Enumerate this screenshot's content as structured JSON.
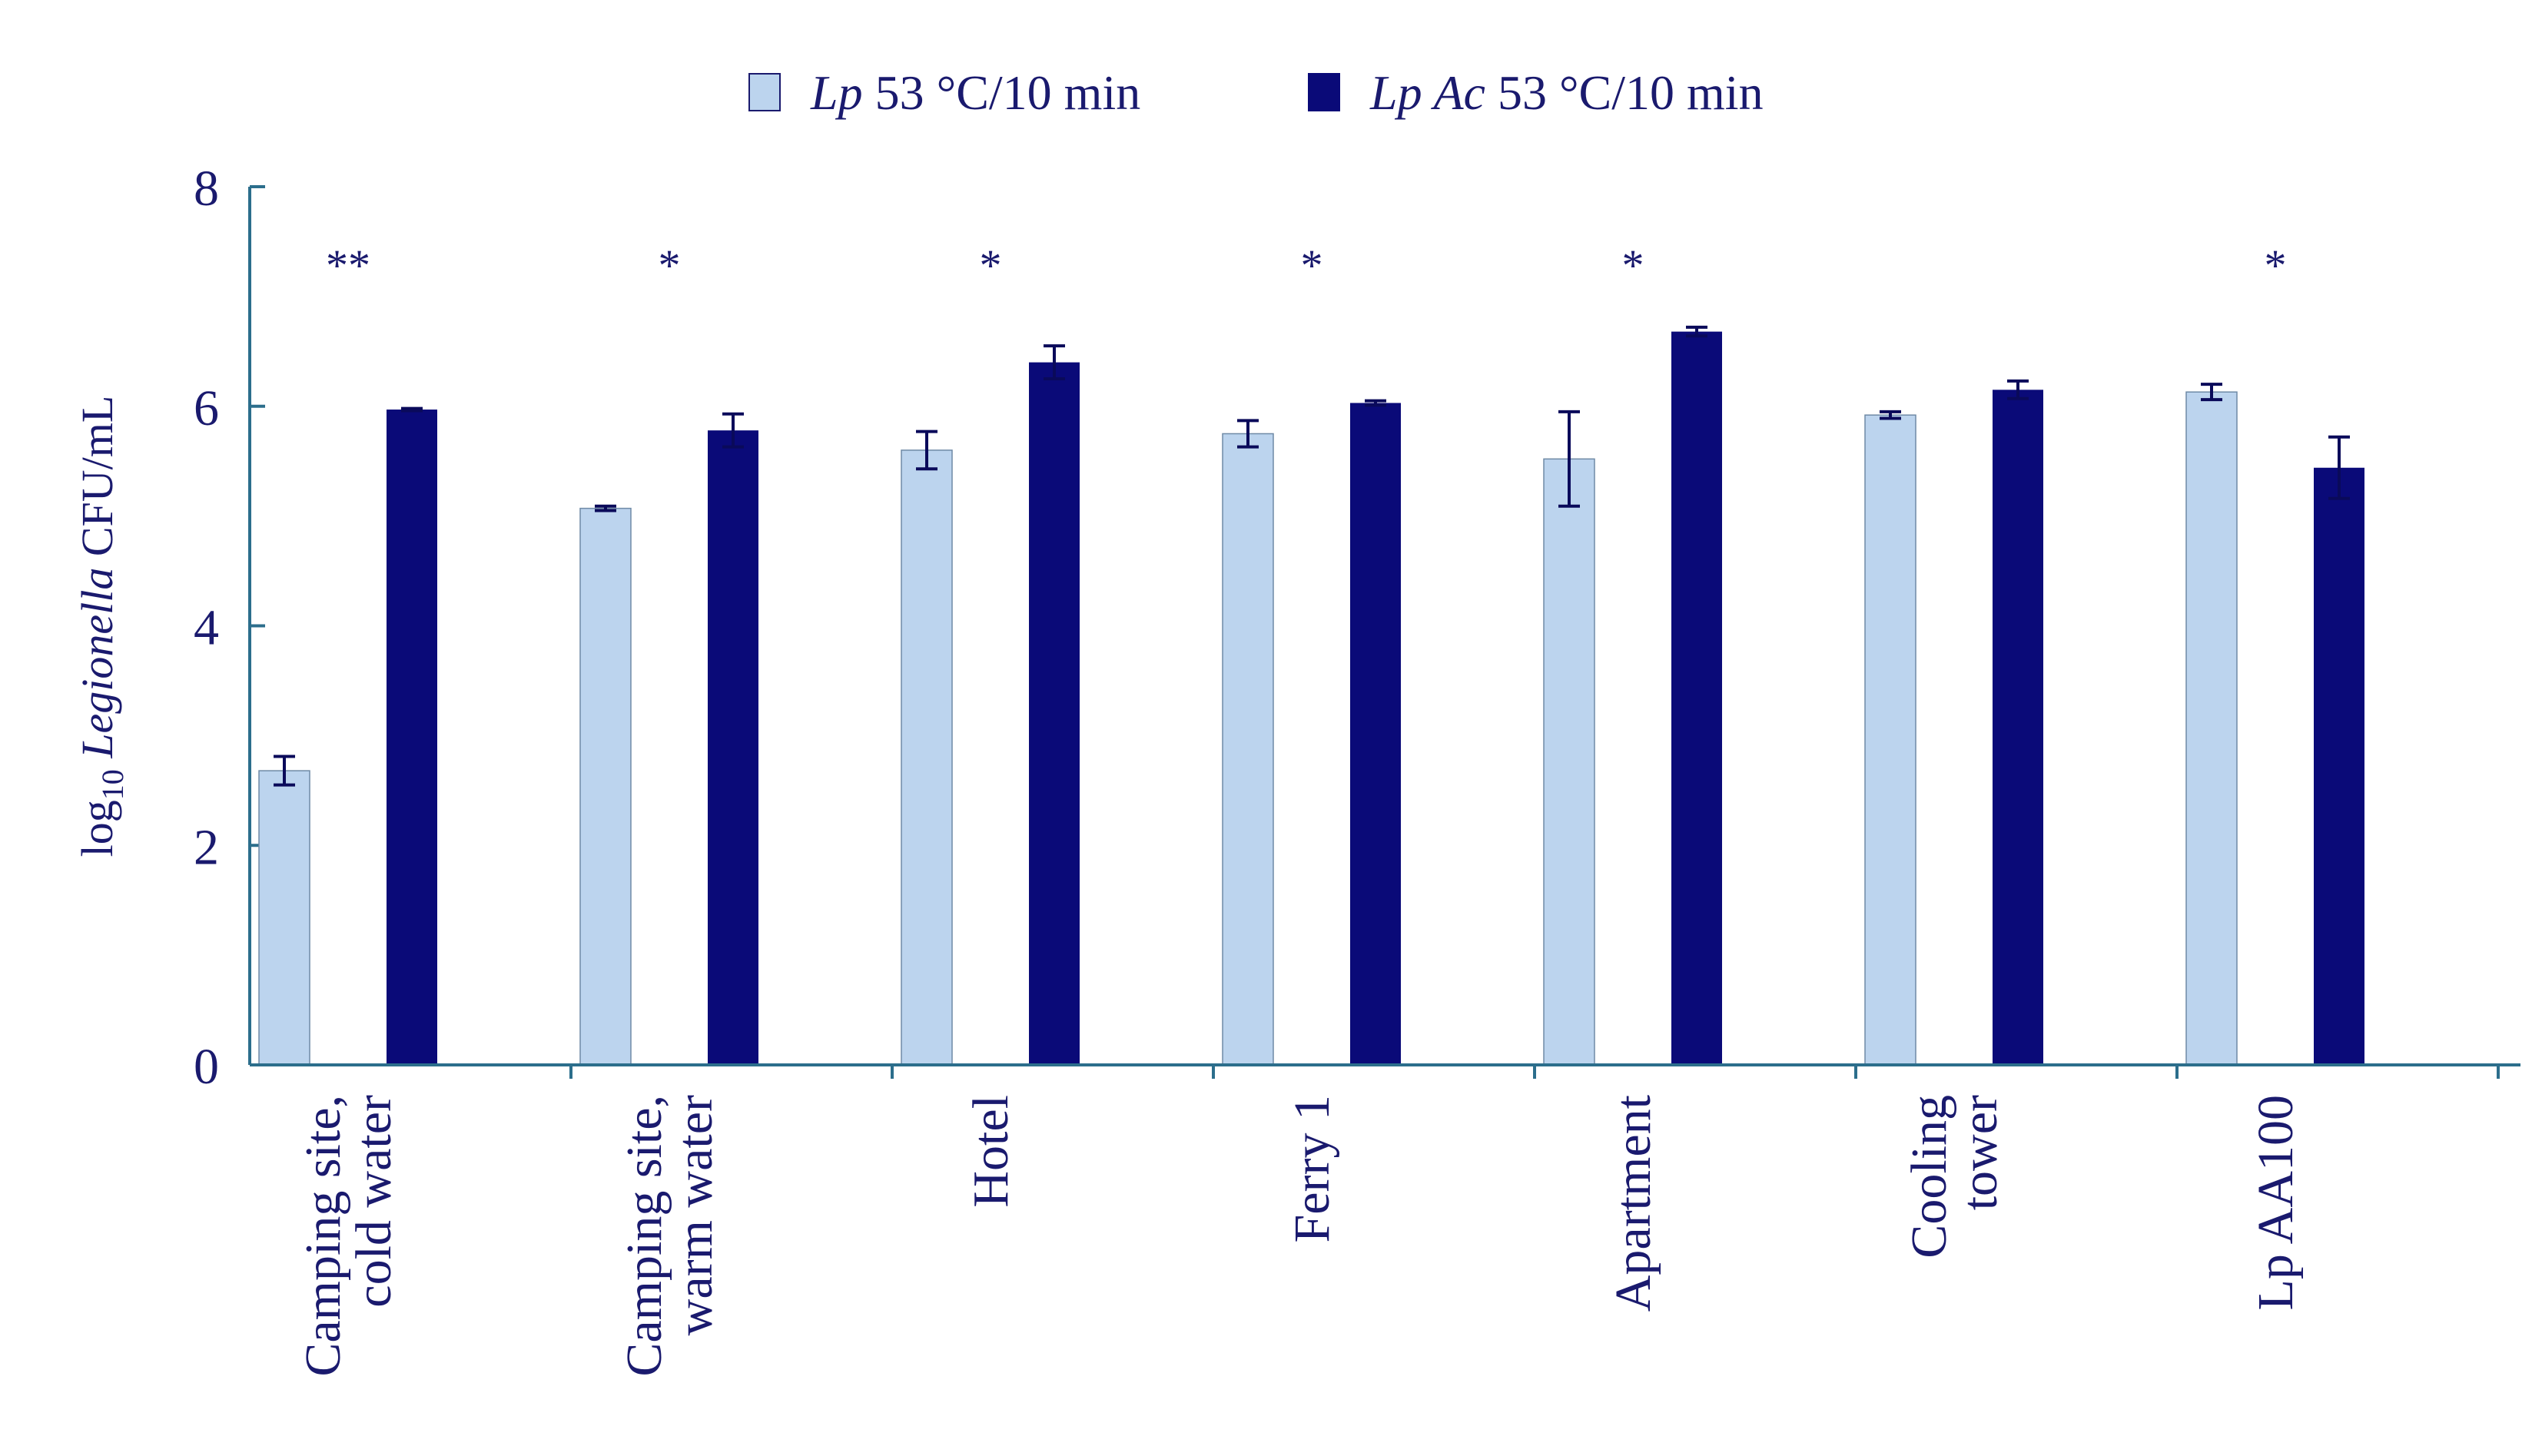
{
  "chart_data": {
    "type": "bar",
    "title": "",
    "categories": [
      [
        "Camping site,",
        "cold water"
      ],
      [
        "Camping site,",
        "warm water"
      ],
      [
        "Hotel"
      ],
      [
        "Ferry 1"
      ],
      [
        "Apartment"
      ],
      [
        "Cooling",
        "tower"
      ],
      [
        "Lp AA100"
      ]
    ],
    "series": [
      {
        "name_italic": "Lp",
        "name_rest": " 53 °C/10 min",
        "color": "#bcd4ee",
        "values": [
          2.68,
          5.07,
          5.6,
          5.75,
          5.52,
          5.92,
          6.13
        ],
        "errors": [
          0.13,
          0.02,
          0.17,
          0.12,
          0.43,
          0.03,
          0.07
        ]
      },
      {
        "name_italic": "Lp Ac",
        "name_rest": " 53 °C/10 min",
        "color": "#0a0a78",
        "values": [
          5.97,
          5.78,
          6.4,
          6.03,
          6.68,
          6.15,
          5.44
        ],
        "errors": [
          0.01,
          0.15,
          0.15,
          0.02,
          0.04,
          0.08,
          0.28
        ]
      }
    ],
    "significance": [
      "**",
      "*",
      "*",
      "*",
      "*",
      "",
      "*"
    ],
    "ylabel": {
      "prefix": "log",
      "subscript": "10",
      "italic": " Legionella",
      "suffix": " CFU/mL"
    },
    "ylim": [
      0,
      8
    ],
    "yticks": [
      0,
      2,
      4,
      6,
      8
    ],
    "legend_position": "top-center",
    "grid": false,
    "text_color": "#1a1a6e",
    "axis_color": "#2c6e8c"
  }
}
